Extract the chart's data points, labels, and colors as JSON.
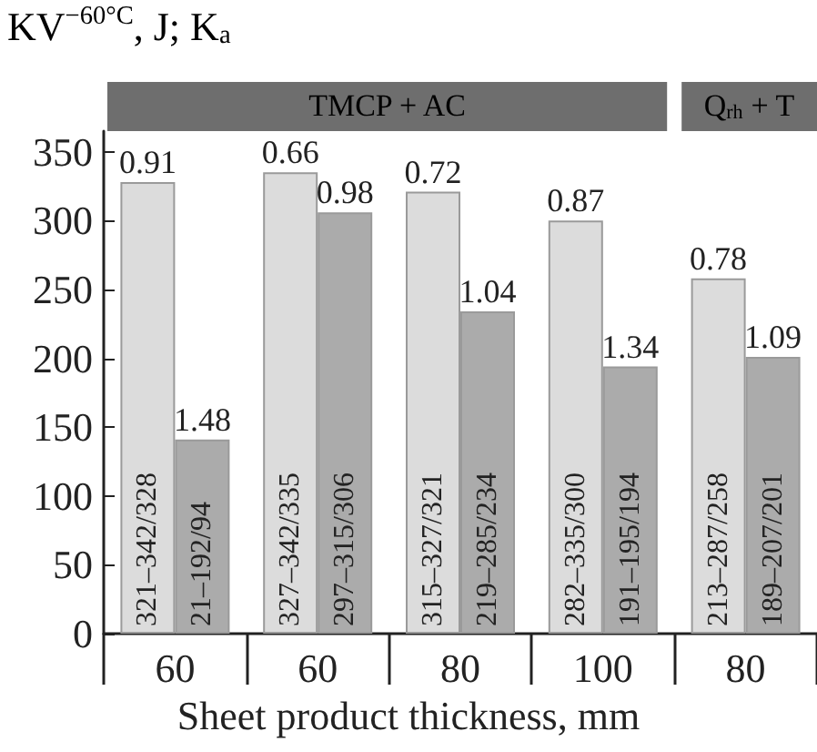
{
  "chart_data": {
    "type": "bar",
    "ylabel": "KV$^{−60°C}$, J; K$_{a}$",
    "xlabel": "Sheet product thickness, mm",
    "categories": [
      "60",
      "60",
      "80",
      "100",
      "80"
    ],
    "series": [
      {
        "color": "#dcdcdc",
        "values": [
          328,
          335,
          321,
          300,
          258
        ]
      },
      {
        "color": "#ababab",
        "values": [
          141,
          306,
          234,
          194,
          201
        ]
      }
    ],
    "annotations": [
      "321–342/328",
      "21–192/94",
      "327–342/335",
      "297–315/306",
      "315–327/321",
      "219–285/234",
      "282–335/300",
      "191–195/194",
      "213–287/258",
      "189–207/201",
      "0.91",
      "1.48",
      "0.66",
      "0.98",
      "0.72",
      "1.04",
      "0.87",
      "1.34",
      "0.78",
      "1.09",
      "TMCP + AC",
      "Q$_{rh}$ + T"
    ],
    "ylim": [
      0,
      365
    ],
    "yticks": [
      0,
      50,
      100,
      150,
      200,
      250,
      300,
      350
    ],
    "grid": false
  }
}
